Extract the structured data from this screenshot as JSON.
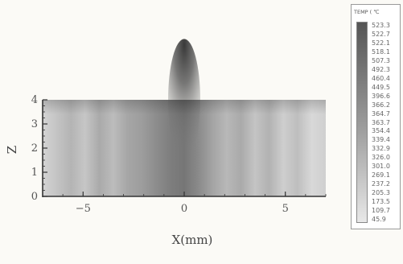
{
  "chart_data": {
    "type": "heatmap",
    "title": "",
    "xlabel": "X(mm)",
    "ylabel": "Z",
    "xlim": [
      -7,
      7
    ],
    "ylim": [
      0,
      4
    ],
    "x_ticks": [
      -5,
      0,
      5
    ],
    "y_ticks": [
      0,
      1,
      2,
      3,
      4
    ],
    "colorbar": {
      "title": "TEMP ( ℃",
      "levels": [
        "523.3",
        "522.7",
        "522.1",
        "518.1",
        "507.3",
        "492.3",
        "460.4",
        "449.5",
        "396.6",
        "366.2",
        "364.7",
        "363.7",
        "354.4",
        "339.4",
        "332.9",
        "326.0",
        "301.0",
        "269.1",
        "237.2",
        "205.3",
        "173.5",
        "109.7",
        "45.9"
      ],
      "colors": [
        "#555555",
        "#e8e8e8"
      ]
    },
    "hot_region": {
      "x": 0,
      "z_top": 4,
      "z_bottom": 1.6
    }
  }
}
